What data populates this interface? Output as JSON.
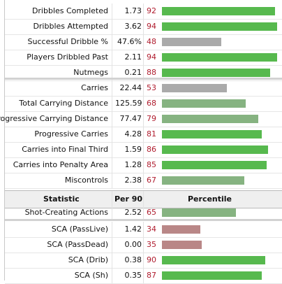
{
  "colors": {
    "high": "#57b94e",
    "mid_green": "#86b381",
    "neutral": "#aaaaaa",
    "low": "#b98787",
    "percentile_text": "#b01c2e"
  },
  "header": {
    "statistic": "Statistic",
    "per90": "Per 90",
    "percentile": "Percentile"
  },
  "rows": [
    {
      "label": "Dribbles Completed",
      "per90": "1.73",
      "percentile": "92"
    },
    {
      "label": "Dribbles Attempted",
      "per90": "3.62",
      "percentile": "94"
    },
    {
      "label": "Successful Dribble %",
      "per90": "47.6%",
      "percentile": "48"
    },
    {
      "label": "Players Dribbled Past",
      "per90": "2.11",
      "percentile": "94"
    },
    {
      "label": "Nutmegs",
      "per90": "0.21",
      "percentile": "88"
    },
    {
      "label": "Carries",
      "per90": "22.44",
      "percentile": "53"
    },
    {
      "label": "Total Carrying Distance",
      "per90": "125.59",
      "percentile": "68"
    },
    {
      "label": "Progressive Carrying Distance",
      "per90": "77.47",
      "percentile": "79"
    },
    {
      "label": "Progressive Carries",
      "per90": "4.28",
      "percentile": "81"
    },
    {
      "label": "Carries into Final Third",
      "per90": "1.59",
      "percentile": "86"
    },
    {
      "label": "Carries into Penalty Area",
      "per90": "1.28",
      "percentile": "85"
    },
    {
      "label": "Miscontrols",
      "per90": "2.38",
      "percentile": "67"
    },
    {
      "label": "Shot-Creating Actions",
      "per90": "2.52",
      "percentile": "65"
    },
    {
      "label": "SCA (PassLive)",
      "per90": "1.42",
      "percentile": "34"
    },
    {
      "label": "SCA (PassDead)",
      "per90": "0.00",
      "percentile": "35"
    },
    {
      "label": "SCA (Drib)",
      "per90": "0.38",
      "percentile": "90"
    },
    {
      "label": "SCA (Sh)",
      "per90": "0.35",
      "percentile": "87"
    }
  ]
}
